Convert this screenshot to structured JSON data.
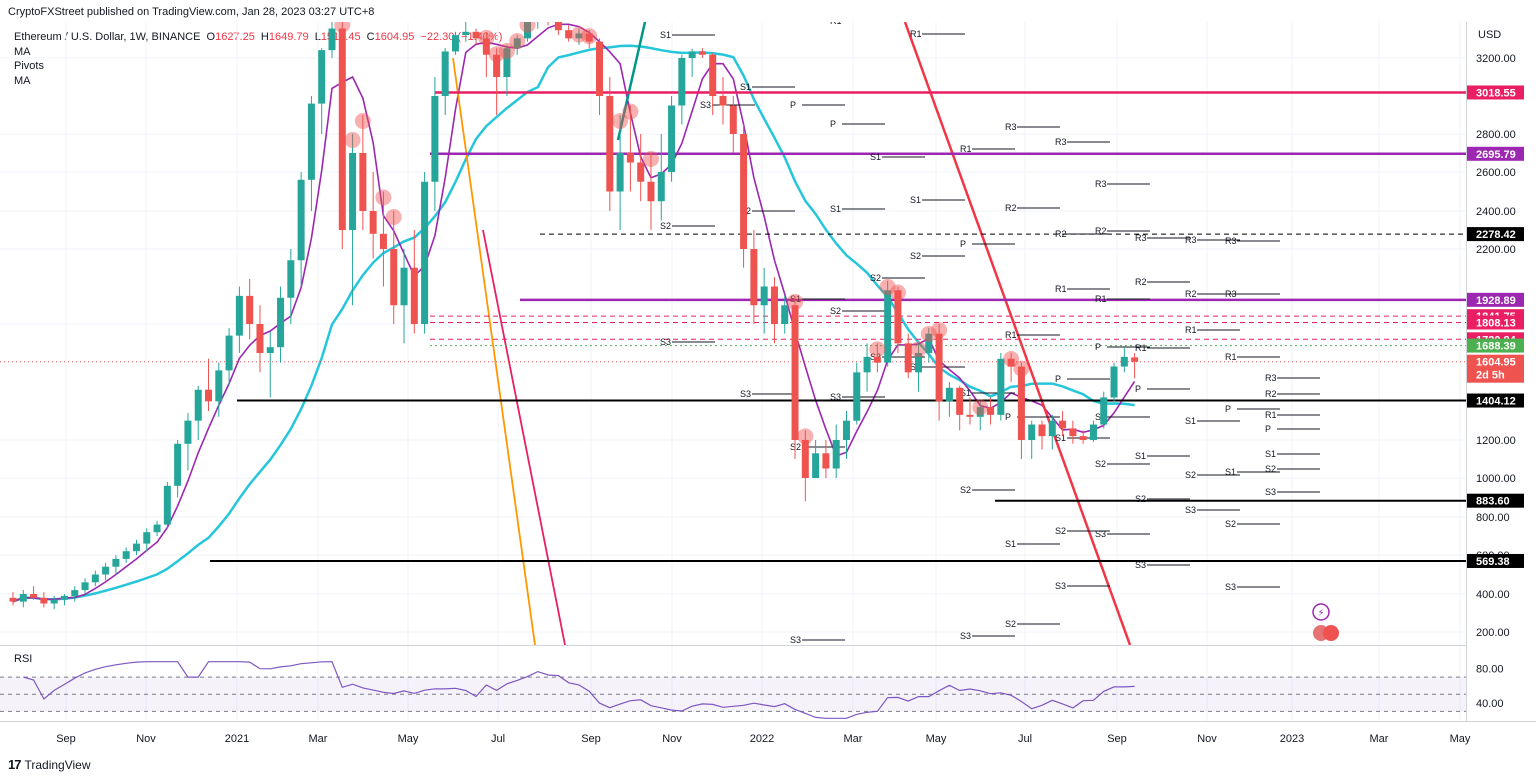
{
  "header": {
    "published": "CryptoFXStreet published on TradingView.com, Jan 28, 2023 03:27 UTC+8"
  },
  "legend": {
    "symbol": "Ethereum / U.S. Dollar, 1W, BINANCE",
    "open_label": "O",
    "open": "1627.25",
    "high_label": "H",
    "high": "1649.79",
    "low_label": "L",
    "low": "1519.45",
    "close_label": "C",
    "close": "1604.95",
    "change": "−22.30 (−1.40%)",
    "indicators": [
      "MA",
      "Pivots",
      "MA"
    ]
  },
  "rsi": {
    "label": "RSI",
    "levels": [
      80,
      40
    ]
  },
  "footer": {
    "logo_glyph": "17",
    "brand": "TradingView"
  },
  "colors": {
    "up": "#26a69a",
    "down": "#ef5350",
    "ma_fast": "#9c27b0",
    "ma_slow": "#26c6da",
    "level_red": "#e91e63",
    "level_purple": "#9c27b0",
    "level_black": "#000000",
    "trend_red": "#f23645",
    "trend_orange": "#ff9800",
    "rsi_line": "#7e57c2"
  },
  "chart_data": {
    "type": "candlestick",
    "x_axis": {
      "labels": [
        "Sep",
        "Nov",
        "2021",
        "Mar",
        "May",
        "Jul",
        "Sep",
        "Nov",
        "2022",
        "Mar",
        "May",
        "Jul",
        "Sep",
        "Nov",
        "2023",
        "Mar",
        "May"
      ]
    },
    "y_axis": {
      "unit": "USD",
      "ticks": [
        3200,
        2800,
        2600,
        2400,
        2200,
        1800,
        1200,
        1000,
        800,
        600,
        400,
        200
      ]
    },
    "price_levels": [
      {
        "value": "3018.55",
        "color": "#e91e63",
        "style": "solid"
      },
      {
        "value": "2695.79",
        "color": "#9c27b0",
        "style": "solid"
      },
      {
        "value": "2278.42",
        "color": "#000000",
        "style": "dashed"
      },
      {
        "value": "1928.89",
        "color": "#9c27b0",
        "style": "solid"
      },
      {
        "value": "1841.75",
        "color": "#e91e63",
        "style": "dashed"
      },
      {
        "value": "1808.13",
        "color": "#e91e63",
        "style": "dashed"
      },
      {
        "value": "1720.84",
        "color": "#e91e63",
        "style": "dashed"
      },
      {
        "value": "1688.39",
        "color": "#4caf50",
        "style": "dotted"
      },
      {
        "value": "1404.12",
        "color": "#000000",
        "style": "solid"
      },
      {
        "value": "883.60",
        "color": "#000000",
        "style": "solid"
      },
      {
        "value": "569.38",
        "color": "#000000",
        "style": "solid"
      }
    ],
    "current_price": {
      "value": "1604.95",
      "countdown": "2d 5h"
    },
    "ohlc": [
      [
        380,
        410,
        340,
        360
      ],
      [
        360,
        420,
        330,
        400
      ],
      [
        400,
        440,
        370,
        380
      ],
      [
        380,
        410,
        330,
        350
      ],
      [
        350,
        390,
        320,
        370
      ],
      [
        370,
        400,
        340,
        390
      ],
      [
        390,
        440,
        360,
        420
      ],
      [
        420,
        480,
        400,
        460
      ],
      [
        460,
        520,
        440,
        500
      ],
      [
        500,
        560,
        470,
        540
      ],
      [
        540,
        600,
        500,
        580
      ],
      [
        580,
        640,
        560,
        620
      ],
      [
        620,
        680,
        600,
        660
      ],
      [
        660,
        740,
        620,
        720
      ],
      [
        720,
        780,
        700,
        760
      ],
      [
        760,
        980,
        740,
        960
      ],
      [
        960,
        1200,
        900,
        1180
      ],
      [
        1180,
        1340,
        1040,
        1300
      ],
      [
        1300,
        1480,
        1200,
        1460
      ],
      [
        1460,
        1620,
        1350,
        1400
      ],
      [
        1400,
        1600,
        1320,
        1560
      ],
      [
        1560,
        1780,
        1480,
        1740
      ],
      [
        1740,
        2000,
        1650,
        1950
      ],
      [
        1950,
        2040,
        1720,
        1800
      ],
      [
        1800,
        1900,
        1550,
        1650
      ],
      [
        1650,
        1760,
        1420,
        1680
      ],
      [
        1680,
        2000,
        1600,
        1940
      ],
      [
        1940,
        2200,
        1800,
        2140
      ],
      [
        2140,
        2600,
        2000,
        2560
      ],
      [
        2560,
        3000,
        2400,
        2960
      ],
      [
        2960,
        3500,
        2800,
        3440
      ],
      [
        3440,
        4300,
        3200,
        4100
      ],
      [
        4100,
        4400,
        2200,
        2300
      ],
      [
        2300,
        2800,
        1900,
        2700
      ],
      [
        2700,
        2900,
        2300,
        2400
      ],
      [
        2400,
        2600,
        2150,
        2280
      ],
      [
        2280,
        2500,
        2000,
        2200
      ],
      [
        2200,
        2400,
        1800,
        1900
      ],
      [
        1900,
        2200,
        1700,
        2100
      ],
      [
        2100,
        2300,
        1750,
        1800
      ],
      [
        1800,
        2600,
        1750,
        2550
      ],
      [
        2550,
        3100,
        2400,
        3000
      ],
      [
        3000,
        3500,
        2900,
        3400
      ],
      [
        3400,
        4000,
        3300,
        3900
      ],
      [
        3900,
        4300,
        3700,
        4000
      ],
      [
        4000,
        4100,
        3600,
        3800
      ],
      [
        3800,
        4000,
        3100,
        3300
      ],
      [
        3300,
        3500,
        2900,
        3100
      ],
      [
        3100,
        3600,
        3000,
        3500
      ],
      [
        3500,
        3900,
        3300,
        3800
      ],
      [
        3800,
        4400,
        3700,
        4300
      ],
      [
        4300,
        4800,
        4100,
        4600
      ],
      [
        4600,
        4860,
        4200,
        4400
      ],
      [
        4400,
        4600,
        3900,
        4050
      ],
      [
        4050,
        4200,
        3700,
        3800
      ],
      [
        3800,
        4100,
        3600,
        3950
      ],
      [
        3950,
        4050,
        3500,
        3700
      ],
      [
        3700,
        3800,
        2900,
        3000
      ],
      [
        3000,
        3100,
        2400,
        2500
      ],
      [
        2500,
        2900,
        2300,
        2700
      ],
      [
        2700,
        2950,
        2500,
        2650
      ],
      [
        2650,
        2800,
        2450,
        2550
      ],
      [
        2550,
        2700,
        2300,
        2450
      ],
      [
        2450,
        2800,
        2350,
        2600
      ],
      [
        2600,
        3000,
        2550,
        2950
      ],
      [
        2950,
        3300,
        2850,
        3200
      ],
      [
        3200,
        3480,
        3100,
        3400
      ],
      [
        3400,
        3500,
        3200,
        3300
      ],
      [
        3300,
        3350,
        2900,
        3000
      ],
      [
        3000,
        3100,
        2850,
        2950
      ],
      [
        2950,
        3000,
        2700,
        2800
      ],
      [
        2800,
        2850,
        2100,
        2200
      ],
      [
        2200,
        2300,
        1800,
        1900
      ],
      [
        1900,
        2100,
        1750,
        2000
      ],
      [
        2000,
        2050,
        1700,
        1800
      ],
      [
        1800,
        1950,
        1750,
        1900
      ],
      [
        1900,
        1950,
        1100,
        1200
      ],
      [
        1200,
        1250,
        880,
        1000
      ],
      [
        1000,
        1200,
        1000,
        1130
      ],
      [
        1130,
        1200,
        1000,
        1050
      ],
      [
        1050,
        1280,
        1000,
        1200
      ],
      [
        1200,
        1350,
        1100,
        1300
      ],
      [
        1300,
        1600,
        1280,
        1550
      ],
      [
        1550,
        1700,
        1450,
        1630
      ],
      [
        1630,
        1700,
        1550,
        1600
      ],
      [
        1600,
        2030,
        1580,
        1980
      ],
      [
        1980,
        2000,
        1650,
        1700
      ],
      [
        1700,
        1750,
        1520,
        1550
      ],
      [
        1550,
        1700,
        1450,
        1650
      ],
      [
        1650,
        1780,
        1600,
        1750
      ],
      [
        1750,
        1800,
        1300,
        1400
      ],
      [
        1400,
        1500,
        1320,
        1470
      ],
      [
        1470,
        1480,
        1250,
        1330
      ],
      [
        1330,
        1420,
        1280,
        1320
      ],
      [
        1320,
        1400,
        1250,
        1370
      ],
      [
        1370,
        1420,
        1280,
        1330
      ],
      [
        1330,
        1650,
        1300,
        1620
      ],
      [
        1620,
        1650,
        1500,
        1580
      ],
      [
        1580,
        1600,
        1100,
        1200
      ],
      [
        1200,
        1300,
        1100,
        1280
      ],
      [
        1280,
        1300,
        1150,
        1220
      ],
      [
        1220,
        1330,
        1150,
        1300
      ],
      [
        1300,
        1350,
        1220,
        1260
      ],
      [
        1260,
        1300,
        1180,
        1220
      ],
      [
        1220,
        1250,
        1180,
        1200
      ],
      [
        1200,
        1300,
        1190,
        1280
      ],
      [
        1280,
        1450,
        1260,
        1420
      ],
      [
        1420,
        1600,
        1400,
        1580
      ],
      [
        1580,
        1680,
        1550,
        1630
      ],
      [
        1627.25,
        1649.79,
        1519.45,
        1604.95
      ]
    ]
  }
}
